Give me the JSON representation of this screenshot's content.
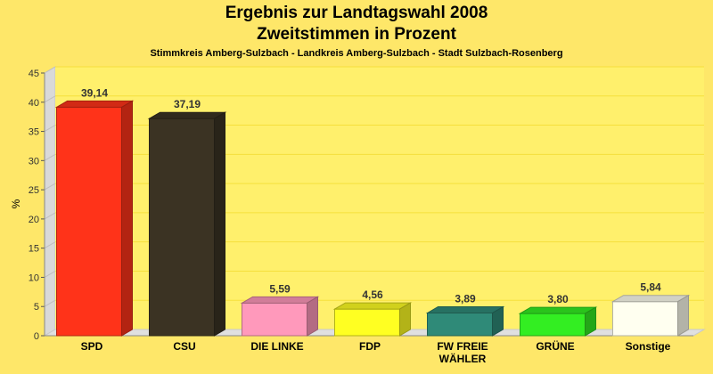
{
  "chart_data": {
    "type": "bar",
    "title": "Ergebnis zur Landtagswahl 2008",
    "subtitle": "Zweitstimmen in Prozent",
    "caption": "Stimmkreis Amberg-Sulzbach - Landkreis Amberg-Sulzbach - Stadt Sulzbach-Rosenberg",
    "ylabel": "%",
    "xlabel": "",
    "ylim": [
      0,
      45
    ],
    "yticks": [
      0,
      5,
      10,
      15,
      20,
      25,
      30,
      35,
      40,
      45
    ],
    "grid": true,
    "categories": [
      "SPD",
      "CSU",
      "DIE LINKE",
      "FDP",
      "FW FREIE WÄHLER",
      "GRÜNE",
      "Sonstige"
    ],
    "category_lines": [
      [
        "SPD"
      ],
      [
        "CSU"
      ],
      [
        "DIE LINKE"
      ],
      [
        "FDP"
      ],
      [
        "FW FREIE",
        "WÄHLER"
      ],
      [
        "GRÜNE"
      ],
      [
        "Sonstige"
      ]
    ],
    "values": [
      39.14,
      37.19,
      5.59,
      4.56,
      3.89,
      3.8,
      5.84
    ],
    "value_labels": [
      "39,14",
      "37,19",
      "5,59",
      "4,56",
      "3,89",
      "3,80",
      "5,84"
    ],
    "colors": [
      "#ff3319",
      "#3b3323",
      "#ff99bb",
      "#ffff22",
      "#2f8a78",
      "#33ee22",
      "#fffff0"
    ]
  },
  "theme": {
    "background": "#fee769",
    "plot_background": "#fff06c",
    "grid_color": "#f5df3c"
  }
}
